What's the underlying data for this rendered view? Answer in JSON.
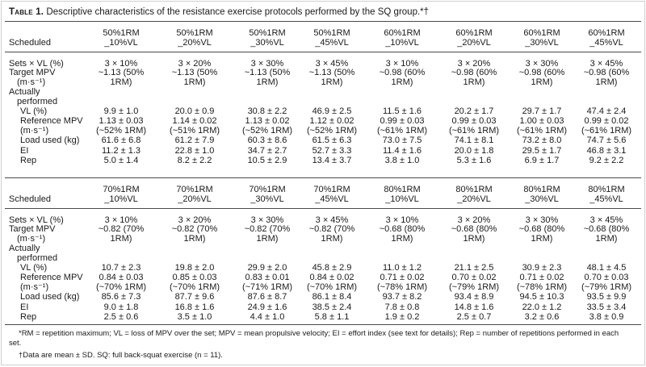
{
  "caption": {
    "label": "Table 1.",
    "text": " Descriptive characteristics of the resistance exercise protocols performed by the SQ group.*†"
  },
  "column_header_label": "Scheduled",
  "row_labels": {
    "sets_vl": "Sets × VL (%)",
    "target_mpv": "Target MPV",
    "target_mpv_unit": "(m·s⁻¹)",
    "actually": "Actually",
    "performed": "performed",
    "vl": "VL (%)",
    "ref_mpv": "Reference MPV",
    "ref_mpv_unit": "(m·s⁻¹)",
    "load": "Load used (kg)",
    "ei": "EI",
    "rep": "Rep"
  },
  "sections": [
    {
      "columns": [
        {
          "name1": "50%1RM",
          "name2": "_10%VL",
          "sets": "3 × 10%",
          "target1": "~1.13 (50%",
          "target2": "1RM)",
          "vl": "9.9 ± 1.0",
          "ref1": "1.13 ± 0.03",
          "ref2": "(~52% 1RM)",
          "load": "61.6 ± 6.8",
          "ei": "11.2 ± 1.3",
          "rep": "5.0 ± 1.4"
        },
        {
          "name1": "50%1RM",
          "name2": "_20%VL",
          "sets": "3 × 20%",
          "target1": "~1.13 (50%",
          "target2": "1RM)",
          "vl": "20.0 ± 0.9",
          "ref1": "1.14 ± 0.02",
          "ref2": "(~51% 1RM)",
          "load": "61.2 ± 7.9",
          "ei": "22.8 ± 1.0",
          "rep": "8.2 ± 2.2"
        },
        {
          "name1": "50%1RM",
          "name2": "_30%VL",
          "sets": "3 × 30%",
          "target1": "~1.13 (50%",
          "target2": "1RM)",
          "vl": "30.8 ± 2.2",
          "ref1": "1.13 ± 0.02",
          "ref2": "(~52% 1RM)",
          "load": "60.3 ± 8.6",
          "ei": "34.7 ± 2.7",
          "rep": "10.5 ± 2.9"
        },
        {
          "name1": "50%1RM",
          "name2": "_45%VL",
          "sets": "3 × 45%",
          "target1": "~1.13 (50%",
          "target2": "1RM)",
          "vl": "46.9 ± 2.5",
          "ref1": "1.12 ± 0.02",
          "ref2": "(~52% 1RM)",
          "load": "61.5 ± 6.3",
          "ei": "52.7 ± 3.3",
          "rep": "13.4 ± 3.7"
        },
        {
          "name1": "60%1RM",
          "name2": "_10%VL",
          "sets": "3 × 10%",
          "target1": "~0.98 (60%",
          "target2": "1RM)",
          "vl": "11.5 ± 1.6",
          "ref1": "0.99 ± 0.03",
          "ref2": "(~61% 1RM)",
          "load": "73.0 ± 7.5",
          "ei": "11.4 ± 1.6",
          "rep": "3.8 ± 1.0"
        },
        {
          "name1": "60%1RM",
          "name2": "_20%VL",
          "sets": "3 × 20%",
          "target1": "~0.98 (60%",
          "target2": "1RM)",
          "vl": "20.2 ± 1.7",
          "ref1": "0.99 ± 0.03",
          "ref2": "(~61% 1RM)",
          "load": "74.1 ± 8.1",
          "ei": "20.0 ± 1.8",
          "rep": "5.3 ± 1.6"
        },
        {
          "name1": "60%1RM",
          "name2": "_30%VL",
          "sets": "3 × 30%",
          "target1": "~0.98 (60%",
          "target2": "1RM)",
          "vl": "29.7 ± 1.7",
          "ref1": "1.00 ± 0.03",
          "ref2": "(~61% 1RM)",
          "load": "73.2 ± 8.0",
          "ei": "29.5 ± 1.7",
          "rep": "6.9 ± 1.7"
        },
        {
          "name1": "60%1RM",
          "name2": "_45%VL",
          "sets": "3 × 45%",
          "target1": "~0.98 (60%",
          "target2": "1RM)",
          "vl": "47.4 ± 2.4",
          "ref1": "0.99 ± 0.02",
          "ref2": "(~61% 1RM)",
          "load": "74.7 ± 5.6",
          "ei": "46.8 ± 3.1",
          "rep": "9.2 ± 2.2"
        }
      ]
    },
    {
      "columns": [
        {
          "name1": "70%1RM",
          "name2": "_10%VL",
          "sets": "3 × 10%",
          "target1": "~0.82 (70%",
          "target2": "1RM)",
          "vl": "10.7 ± 2.3",
          "ref1": "0.84 ± 0.03",
          "ref2": "(~70% 1RM)",
          "load": "85.6 ± 7.3",
          "ei": "9.0 ± 1.8",
          "rep": "2.5 ± 0.6"
        },
        {
          "name1": "70%1RM",
          "name2": "_20%VL",
          "sets": "3 × 20%",
          "target1": "~0.82 (70%",
          "target2": "1RM)",
          "vl": "19.8 ± 2.0",
          "ref1": "0.85 ± 0.03",
          "ref2": "(~70% 1RM)",
          "load": "87.7 ± 9.6",
          "ei": "16.8 ± 1.6",
          "rep": "3.5 ± 1.0"
        },
        {
          "name1": "70%1RM",
          "name2": "_30%VL",
          "sets": "3 × 30%",
          "target1": "~0.82 (70%",
          "target2": "1RM)",
          "vl": "29.9 ± 2.0",
          "ref1": "0.83 ± 0.01",
          "ref2": "(~71% 1RM)",
          "load": "87.6 ± 8.7",
          "ei": "24.9 ± 1.6",
          "rep": "4.4 ± 1.0"
        },
        {
          "name1": "70%1RM",
          "name2": "_45%VL",
          "sets": "3 × 45%",
          "target1": "~0.82 (70%",
          "target2": "1RM)",
          "vl": "45.8 ± 2.9",
          "ref1": "0.84 ± 0.02",
          "ref2": "(~70% 1RM)",
          "load": "86.1 ± 8.4",
          "ei": "38.5 ± 2.4",
          "rep": "5.8 ± 1.1"
        },
        {
          "name1": "80%1RM",
          "name2": "_10%VL",
          "sets": "3 × 10%",
          "target1": "~0.68 (80%",
          "target2": "1RM)",
          "vl": "11.0 ± 1.2",
          "ref1": "0.71 ± 0.02",
          "ref2": "(~78% 1RM)",
          "load": "93.7 ± 8.2",
          "ei": "7.8 ± 0.8",
          "rep": "1.9 ± 0.2"
        },
        {
          "name1": "80%1RM",
          "name2": "_20%VL",
          "sets": "3 × 20%",
          "target1": "~0.68 (80%",
          "target2": "1RM)",
          "vl": "21.1 ± 2.5",
          "ref1": "0.70 ± 0.02",
          "ref2": "(~79% 1RM)",
          "load": "93.4 ± 8.9",
          "ei": "14.8 ± 1.6",
          "rep": "2.5 ± 0.7"
        },
        {
          "name1": "80%1RM",
          "name2": "_30%VL",
          "sets": "3 × 30%",
          "target1": "~0.68 (80%",
          "target2": "1RM)",
          "vl": "30.9 ± 2.3",
          "ref1": "0.71 ± 0.02",
          "ref2": "(~78% 1RM)",
          "load": "94.5 ± 10.3",
          "ei": "22.0 ± 1.2",
          "rep": "3.2 ± 0.6"
        },
        {
          "name1": "80%1RM",
          "name2": "_45%VL",
          "sets": "3 × 45%",
          "target1": "~0.68 (80%",
          "target2": "1RM)",
          "vl": "48.1 ± 4.5",
          "ref1": "0.70 ± 0.03",
          "ref2": "(~79% 1RM)",
          "load": "93.5 ± 9.9",
          "ei": "33.5 ± 3.4",
          "rep": "3.8 ± 0.9"
        }
      ]
    }
  ],
  "footnotes": {
    "star_line1": "*RM = repetition maximum; VL = loss of MPV over the set; MPV = mean propulsive velocity; EI = effort index (see text for details); Rep = number of repetitions performed in each",
    "star_line2": "set.",
    "dagger": "†Data are mean ± SD. SQ: full back-squat exercise (n = 11)."
  }
}
